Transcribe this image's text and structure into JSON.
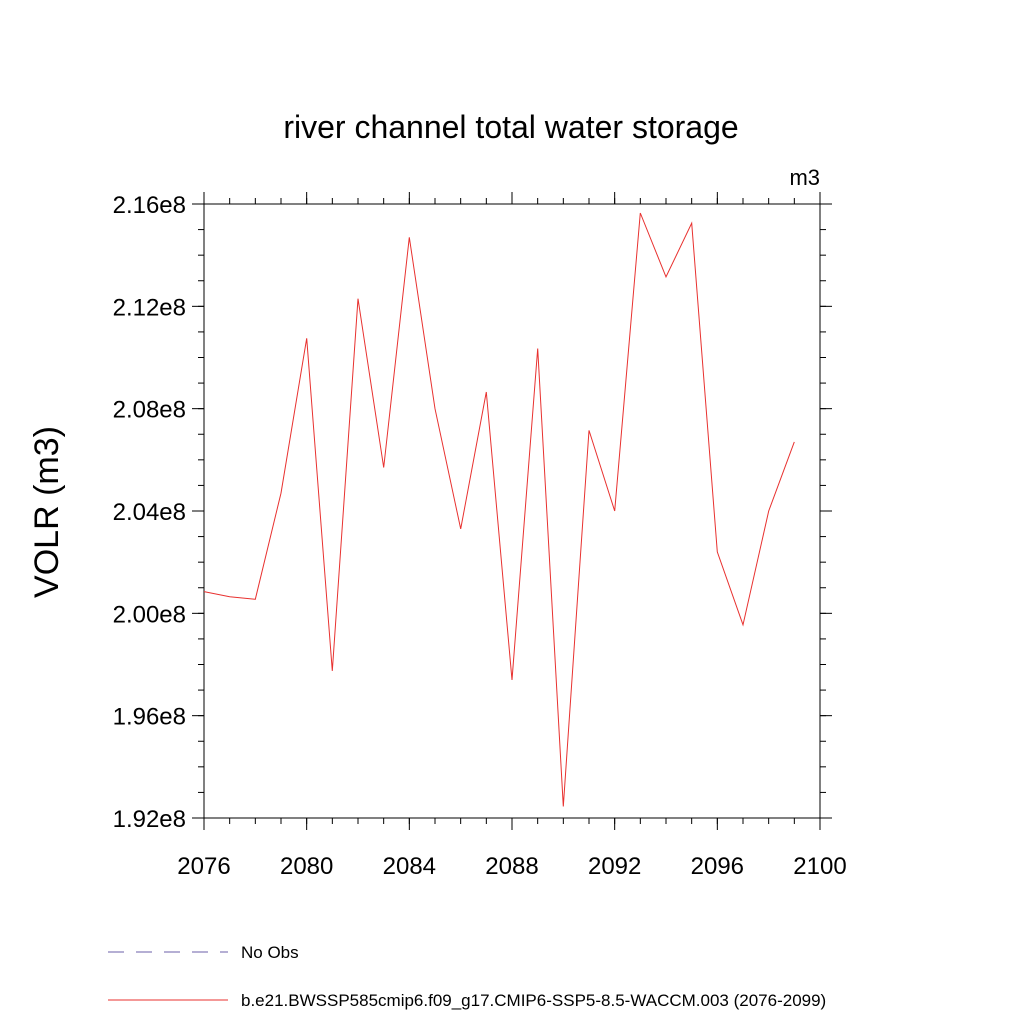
{
  "chart_data": {
    "type": "line",
    "title": "river channel total water storage",
    "units": "m3",
    "ylabel": "VOLR  (m3)",
    "xlabel": "",
    "xlim": [
      2076,
      2100
    ],
    "ylim": [
      192000000,
      216000000
    ],
    "xticks": [
      2076,
      2080,
      2084,
      2088,
      2092,
      2096,
      2100
    ],
    "xtick_labels": [
      "2076",
      "2080",
      "2084",
      "2088",
      "2092",
      "2096",
      "2100"
    ],
    "yticks": [
      192000000,
      196000000,
      200000000,
      204000000,
      208000000,
      212000000,
      216000000
    ],
    "ytick_labels": [
      "1.92e8",
      "1.96e8",
      "2.00e8",
      "2.04e8",
      "2.08e8",
      "2.12e8",
      "2.16e8"
    ],
    "grid": false,
    "legend_position": "bottom-left",
    "legend": [
      {
        "label": "No Obs",
        "color": "#6b5fa8",
        "style": "dashed"
      },
      {
        "label": "b.e21.BWSSP585cmip6.f09_g17.CMIP6-SSP5-8.5-WACCM.003 (2076-2099)",
        "color": "#e8312f",
        "style": "solid"
      }
    ],
    "series": [
      {
        "color": "#e8312f",
        "x": [
          2076,
          2077,
          2078,
          2079,
          2080,
          2081,
          2082,
          2083,
          2084,
          2085,
          2086,
          2087,
          2088,
          2089,
          2090,
          2091,
          2092,
          2093,
          2094,
          2095,
          2096,
          2097,
          2098,
          2099
        ],
        "values": [
          200850000,
          200650000,
          200550000,
          204700000,
          210750000,
          197750000,
          212300000,
          205700000,
          214700000,
          208000000,
          203300000,
          208650000,
          197400000,
          210350000,
          192450000,
          207150000,
          204000000,
          215650000,
          213150000,
          215250000,
          202400000,
          199550000,
          204000000,
          206700000
        ]
      }
    ]
  }
}
